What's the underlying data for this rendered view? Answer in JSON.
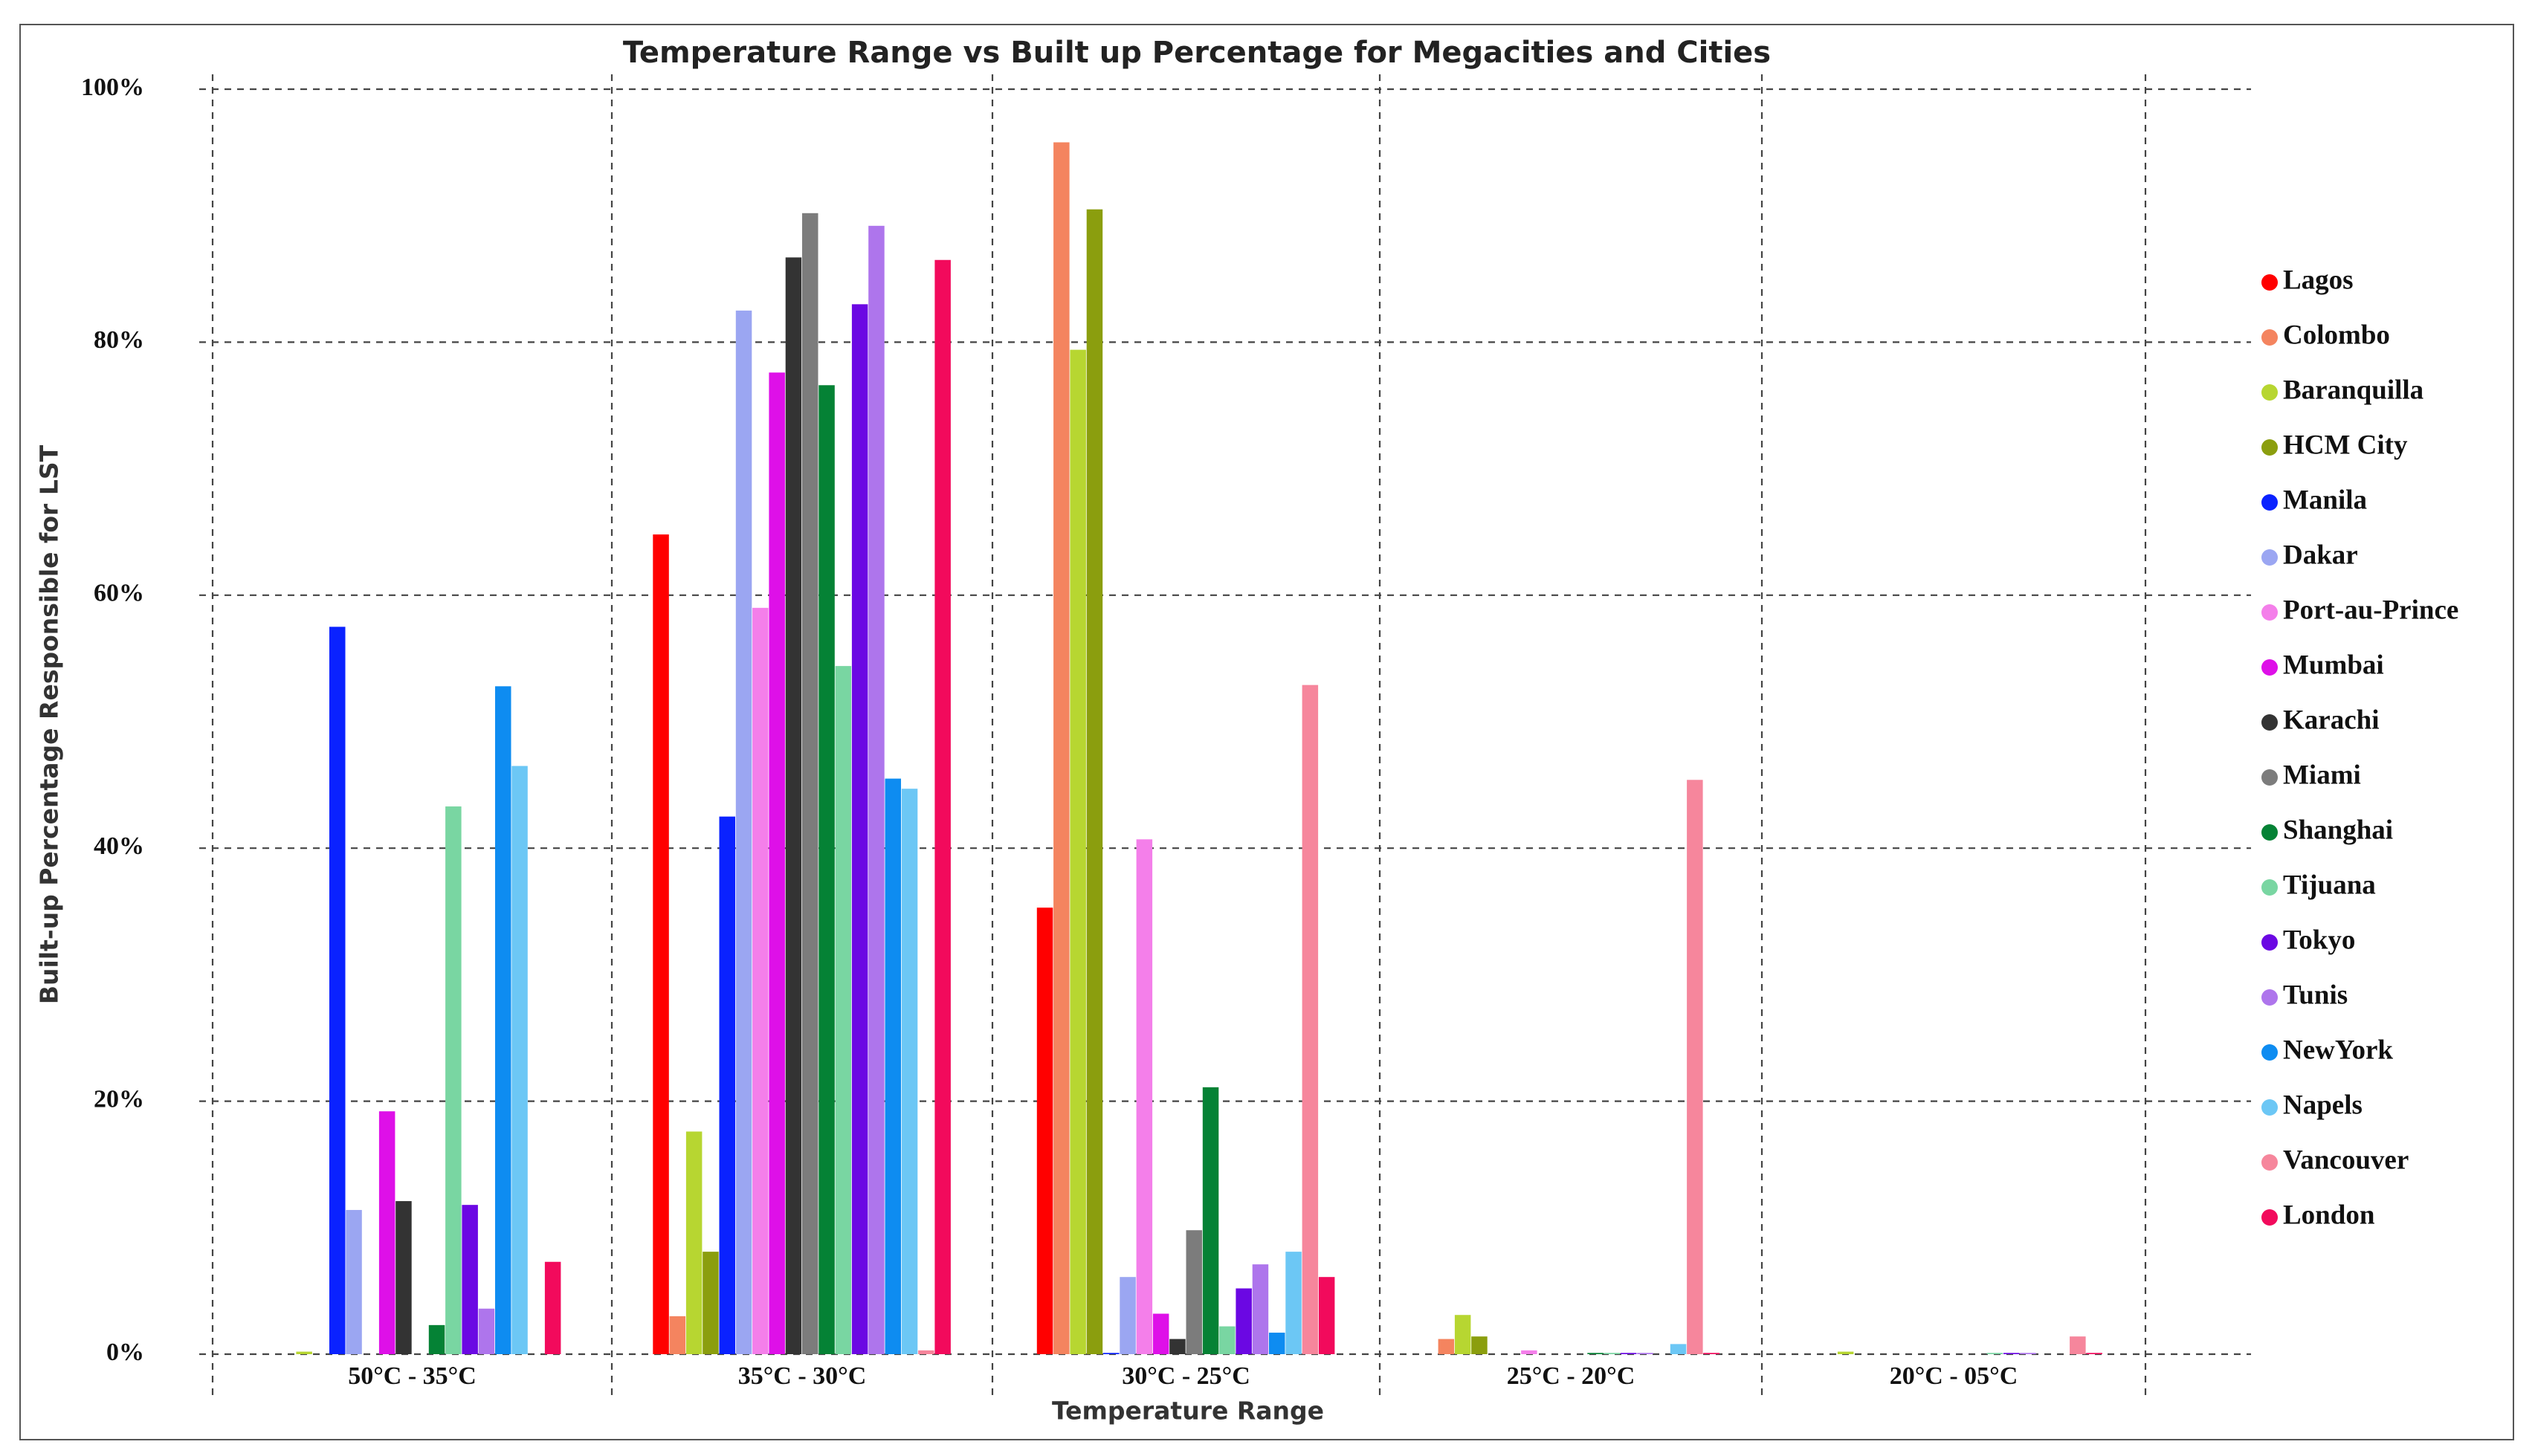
{
  "chart_data": {
    "type": "bar",
    "title": "Temperature Range vs Built up Percentage for Megacities and Cities",
    "xlabel": "Temperature Range",
    "ylabel": "Built-up Percentage Responsible for LST",
    "ylim": [
      0,
      100
    ],
    "y_tick_labels": [
      "0%",
      "20%",
      "40%",
      "60%",
      "80%",
      "100%"
    ],
    "grid": true,
    "legend_position": "right",
    "categories": [
      "50°C - 35°C",
      "35°C - 30°C",
      "30°C - 25°C",
      "25°C - 20°C",
      "20°C - 05°C"
    ],
    "series": [
      {
        "name": "Lagos",
        "color": "#ff0000",
        "values": [
          0,
          64.8,
          35.3,
          0,
          0
        ]
      },
      {
        "name": "Colombo",
        "color": "#f4845f",
        "values": [
          0,
          3.0,
          95.8,
          1.2,
          0
        ]
      },
      {
        "name": "Baranquilla",
        "color": "#b7d631",
        "values": [
          0.2,
          17.6,
          79.4,
          3.1,
          0.2
        ]
      },
      {
        "name": "HCM City",
        "color": "#8b9e0e",
        "values": [
          0,
          8.1,
          90.5,
          1.4,
          0
        ]
      },
      {
        "name": "Manila",
        "color": "#0a22ff",
        "values": [
          57.5,
          42.5,
          0.1,
          0,
          0
        ]
      },
      {
        "name": "Dakar",
        "color": "#9ba6f2",
        "values": [
          11.4,
          82.5,
          6.1,
          0,
          0
        ]
      },
      {
        "name": "Port-au-Prince",
        "color": "#f47fea",
        "values": [
          0,
          59.0,
          40.7,
          0.3,
          0
        ]
      },
      {
        "name": "Mumbai",
        "color": "#de10e8",
        "values": [
          19.2,
          77.6,
          3.2,
          0,
          0
        ]
      },
      {
        "name": "Karachi",
        "color": "#333333",
        "values": [
          12.1,
          86.7,
          1.2,
          0,
          0
        ]
      },
      {
        "name": "Miami",
        "color": "#7c7c7c",
        "values": [
          0,
          90.2,
          9.8,
          0,
          0
        ]
      },
      {
        "name": "Shanghai",
        "color": "#058235",
        "values": [
          2.3,
          76.6,
          21.1,
          0.1,
          0
        ]
      },
      {
        "name": "Tijuana",
        "color": "#79d6a2",
        "values": [
          43.3,
          54.4,
          2.2,
          0.1,
          0.1
        ]
      },
      {
        "name": "Tokyo",
        "color": "#6b08e3",
        "values": [
          11.8,
          83.0,
          5.2,
          0.1,
          0.1
        ]
      },
      {
        "name": "Tunis",
        "color": "#ae75ec",
        "values": [
          3.6,
          89.2,
          7.1,
          0.1,
          0.1
        ]
      },
      {
        "name": "NewYork",
        "color": "#0e8cf1",
        "values": [
          52.8,
          45.5,
          1.7,
          0,
          0
        ]
      },
      {
        "name": "Napels",
        "color": "#6cc7f5",
        "values": [
          46.5,
          44.7,
          8.1,
          0.8,
          0
        ]
      },
      {
        "name": "Vancouver",
        "color": "#f6869c",
        "values": [
          0,
          0.3,
          52.9,
          45.4,
          1.4
        ]
      },
      {
        "name": "London",
        "color": "#f20a5c",
        "values": [
          7.3,
          86.5,
          6.1,
          0.1,
          0.1
        ]
      }
    ]
  }
}
